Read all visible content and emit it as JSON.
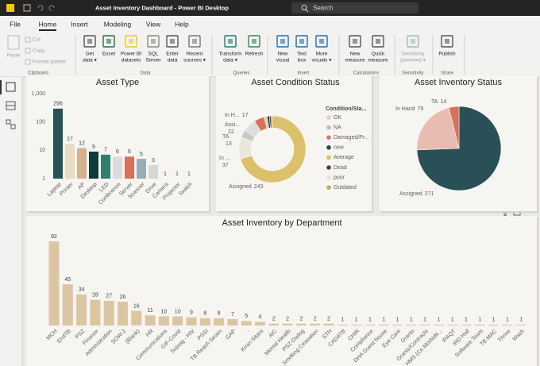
{
  "app": {
    "title": "Asset Inventory Dashboard - Power BI Desktop",
    "search": "Search",
    "tabs": [
      "File",
      "Home",
      "Insert",
      "Modeling",
      "View",
      "Help"
    ],
    "groups": [
      {
        "name": "Clipboard",
        "buttons": [
          [
            "Paste"
          ],
          [
            "Cut"
          ],
          [
            "Copy"
          ],
          [
            "Format painter"
          ]
        ]
      },
      {
        "name": "Data",
        "buttons": [
          [
            "Get",
            "data ▾"
          ],
          [
            "Excel"
          ],
          [
            "Power BI",
            "datasets"
          ],
          [
            "SQL",
            "Server"
          ],
          [
            "Enter",
            "data"
          ],
          [
            "Recent",
            "sources ▾"
          ]
        ]
      },
      {
        "name": "Queries",
        "buttons": [
          [
            "Transform",
            "data ▾"
          ],
          [
            "Refresh"
          ]
        ]
      },
      {
        "name": "Insert",
        "buttons": [
          [
            "New",
            "visual"
          ],
          [
            "Text",
            "box"
          ],
          [
            "More",
            "visuals ▾"
          ]
        ]
      },
      {
        "name": "Calculations",
        "buttons": [
          [
            "New",
            "measure"
          ],
          [
            "Quick",
            "measure"
          ]
        ]
      },
      {
        "name": "Sensitivity",
        "buttons": [
          [
            "Sensitivity",
            "(preview) ▾"
          ]
        ]
      },
      {
        "name": "Share",
        "buttons": [
          [
            "Publish"
          ]
        ]
      }
    ]
  },
  "chart_data": [
    {
      "type": "bar",
      "title": "Asset Type",
      "yscale": "log",
      "categories": [
        "Laptop",
        "Printer",
        "AP",
        "Desktop",
        "LED",
        "Conference",
        "Server",
        "Scanner",
        "Drive",
        "Camera",
        "Projector",
        "Switch"
      ],
      "values": [
        296,
        17,
        12,
        9,
        7,
        6,
        6,
        5,
        3,
        1,
        1,
        1
      ],
      "colors": [
        "#2a5057",
        "#e9dcc4",
        "#d4b28c",
        "#103b3d",
        "#2f7e6e",
        "#dcdcdc",
        "#d9705c",
        "#9aacb4",
        "#d6d6d6",
        "#cfcfcf",
        "#cfcfcf",
        "#cfcfcf"
      ],
      "ylim": [
        1,
        1000
      ],
      "yticks": [
        1,
        10,
        100,
        {
          "value": 1000,
          "label": "1,000"
        }
      ]
    },
    {
      "type": "donut",
      "title": "Asset Condition Status",
      "labels": [
        "Assigned",
        "In ...",
        "TA",
        "Assi...",
        "In H...",
        null,
        null,
        null,
        null
      ],
      "values": [
        243,
        37,
        13,
        22,
        17,
        5,
        4,
        3,
        2
      ],
      "colors": [
        "#dcc06a",
        "#ebe6dc",
        "#c9c9c9",
        "#dedede",
        "#d9705c",
        "#e3cfa8",
        "#27474e",
        "#5a3a2a",
        "#c8a27a"
      ],
      "legend": {
        "title": "Condition/Sta...",
        "items": [
          "OK",
          "NA",
          "Damaged/Pr...",
          "new",
          "Average",
          "Dead",
          "poor",
          "Outdated"
        ],
        "colors": [
          "#e3cfa8",
          "#bdbdbd",
          "#d97863",
          "#27474e",
          "#dcc06a",
          "#5a3a2a",
          "#e8e0d8",
          "#c8a27a"
        ]
      }
    },
    {
      "type": "pie",
      "title": "Asset Inventory Status",
      "labels": [
        "Assigned",
        "In Hand",
        "TA"
      ],
      "values": [
        271,
        79,
        14
      ],
      "colors": [
        "#2a5057",
        "#e8bcb0",
        "#d9705c"
      ]
    },
    {
      "type": "column",
      "title": "Asset Inventory by Department",
      "color": "#dcc5a3",
      "categories": [
        "MCH",
        "EndTB",
        "PSZ",
        "Finance",
        "Administration",
        "SOW-2",
        "(Blank)",
        "HR",
        "Communications",
        "GIF-Covid",
        "Sujaag - HIV",
        "PSSI",
        "TB Reach Seven",
        "GAP",
        "-",
        "Kiran Sitara",
        "AIC",
        "Mental Health",
        "PSZ-Dailog",
        "Smoking Ceasation",
        "STH",
        "CADATB",
        "CHIR",
        "Compliance",
        "DHA Guest house",
        "Eye Care",
        "Grants",
        "Grants/Contracts",
        "HMS (Co Morbidit...",
        "IPAQT",
        "IRD Hall",
        "Software Team",
        "TB MAC",
        "Thrive",
        "Wash"
      ],
      "values": [
        92,
        45,
        34,
        28,
        27,
        26,
        16,
        11,
        10,
        10,
        9,
        8,
        8,
        7,
        5,
        4,
        2,
        2,
        2,
        2,
        2,
        1,
        1,
        1,
        1,
        1,
        1,
        1,
        1,
        1,
        1,
        1,
        1,
        1,
        1
      ]
    }
  ]
}
